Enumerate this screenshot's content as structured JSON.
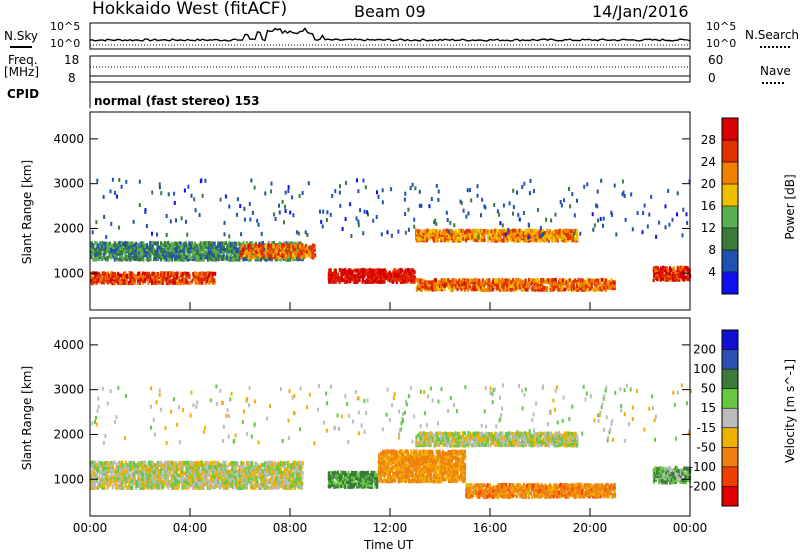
{
  "header": {
    "station": "Hokkaido West (fitACF)",
    "beam": "Beam 09",
    "date": "14/Jan/2016"
  },
  "noise_panel": {
    "left_label": "N.Sky",
    "right_label": "N.Search",
    "left_ticks": [
      "10^5",
      "10^0"
    ],
    "right_ticks": [
      "10^5",
      "10^0"
    ]
  },
  "freq_panel": {
    "left_label_line1": "Freq.",
    "left_label_line2": "[MHz]",
    "right_label": "Nave",
    "left_ticks": [
      "18",
      "8"
    ],
    "right_ticks": [
      "60",
      "0"
    ]
  },
  "cpid": {
    "label": "CPID",
    "mode": "normal (fast stereo) 153"
  },
  "colors": {
    "power_scale": [
      "#1010ee",
      "#2050b0",
      "#3a7a3a",
      "#5ab050",
      "#f0c000",
      "#f08000",
      "#e03000",
      "#d80000"
    ],
    "velocity_scale": [
      "#1010d0",
      "#2a50b0",
      "#3a7a3a",
      "#66c840",
      "#bcbcbc",
      "#f0b000",
      "#f08010",
      "#f04000",
      "#e00000"
    ]
  },
  "chart_data": [
    {
      "type": "heatmap",
      "name": "power",
      "ylabel": "Slant Range [km]",
      "y_ticks": [
        1000,
        2000,
        3000,
        4000
      ],
      "ylim": [
        180,
        4600
      ],
      "x_ticks": [
        "00:00",
        "04:00",
        "08:00",
        "12:00",
        "16:00",
        "20:00",
        "00:00"
      ],
      "colorbar_label": "Power [dB]",
      "colorbar_ticks": [
        "4",
        "8",
        "12",
        "16",
        "20",
        "24",
        "28"
      ],
      "colorbar_range": [
        0,
        30
      ],
      "features": [
        {
          "t_start": 0.0,
          "t_end": 5.0,
          "r_center": 900,
          "r_width": 250,
          "level": 24
        },
        {
          "t_start": 0.0,
          "t_end": 8.5,
          "r_center": 1500,
          "r_width": 400,
          "level": 10
        },
        {
          "t_start": 6.0,
          "t_end": 9.0,
          "r_center": 1500,
          "r_width": 300,
          "level": 22
        },
        {
          "t_start": 9.5,
          "t_end": 13.0,
          "r_center": 950,
          "r_width": 300,
          "level": 28
        },
        {
          "t_start": 13.0,
          "t_end": 19.5,
          "r_center": 1850,
          "r_width": 250,
          "level": 20
        },
        {
          "t_start": 13.0,
          "t_end": 21.0,
          "r_center": 750,
          "r_width": 250,
          "level": 22
        },
        {
          "t_start": 22.5,
          "t_end": 24.0,
          "r_center": 1000,
          "r_width": 300,
          "level": 26
        }
      ]
    },
    {
      "type": "heatmap",
      "name": "velocity",
      "ylabel": "Slant Range [km]",
      "y_ticks": [
        1000,
        2000,
        3000,
        4000
      ],
      "ylim": [
        180,
        4600
      ],
      "x_ticks": [
        "00:00",
        "04:00",
        "08:00",
        "12:00",
        "16:00",
        "20:00",
        "00:00"
      ],
      "xlabel": "Time UT",
      "colorbar_label": "Velocity [m s^-1]",
      "colorbar_ticks": [
        "200",
        "100",
        "50",
        "15",
        "-15",
        "-50",
        "-100",
        "-200"
      ],
      "colorbar_range": [
        -250,
        250
      ],
      "features": [
        {
          "t_start": 0.0,
          "t_end": 8.5,
          "r_center": 1100,
          "r_width": 600,
          "level": 0
        },
        {
          "t_start": 9.5,
          "t_end": 11.5,
          "r_center": 1000,
          "r_width": 350,
          "level": 60
        },
        {
          "t_start": 11.5,
          "t_end": 15.0,
          "r_center": 1300,
          "r_width": 700,
          "level": -60
        },
        {
          "t_start": 13.0,
          "t_end": 19.5,
          "r_center": 1900,
          "r_width": 300,
          "level": 0
        },
        {
          "t_start": 15.0,
          "t_end": 21.0,
          "r_center": 750,
          "r_width": 300,
          "level": -70
        },
        {
          "t_start": 22.5,
          "t_end": 24.0,
          "r_center": 1100,
          "r_width": 350,
          "level": 40
        }
      ]
    }
  ]
}
